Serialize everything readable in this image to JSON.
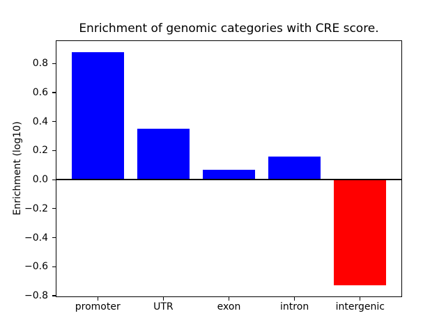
{
  "figure": {
    "background_color": "#ffffff",
    "text_color": "#000000",
    "axis_color": "#000000"
  },
  "chart_data": {
    "type": "bar",
    "title": "Enrichment of genomic categories with CRE score.",
    "xlabel": "",
    "ylabel": "Enrichment (log10)",
    "categories": [
      "promoter",
      "UTR",
      "exon",
      "intron",
      "intergenic"
    ],
    "values": [
      0.88,
      0.35,
      0.07,
      0.16,
      -0.73
    ],
    "bar_colors": [
      "#0000ff",
      "#0000ff",
      "#0000ff",
      "#0000ff",
      "#ff0000"
    ],
    "positive_color": "#0000ff",
    "negative_color": "#ff0000",
    "bar_width_fraction": 0.8,
    "xlim": [
      -0.64,
      4.64
    ],
    "ylim": [
      -0.81,
      0.96
    ],
    "yticks": [
      0.8,
      0.6,
      0.4,
      0.2,
      0.0,
      -0.2,
      -0.4,
      -0.6,
      -0.8
    ],
    "ytick_labels": [
      "0.8",
      "0.6",
      "0.4",
      "0.2",
      "0.0",
      "−0.2",
      "−0.4",
      "−0.6",
      "−0.8"
    ],
    "zero_line": true,
    "grid": false,
    "legend": null
  }
}
